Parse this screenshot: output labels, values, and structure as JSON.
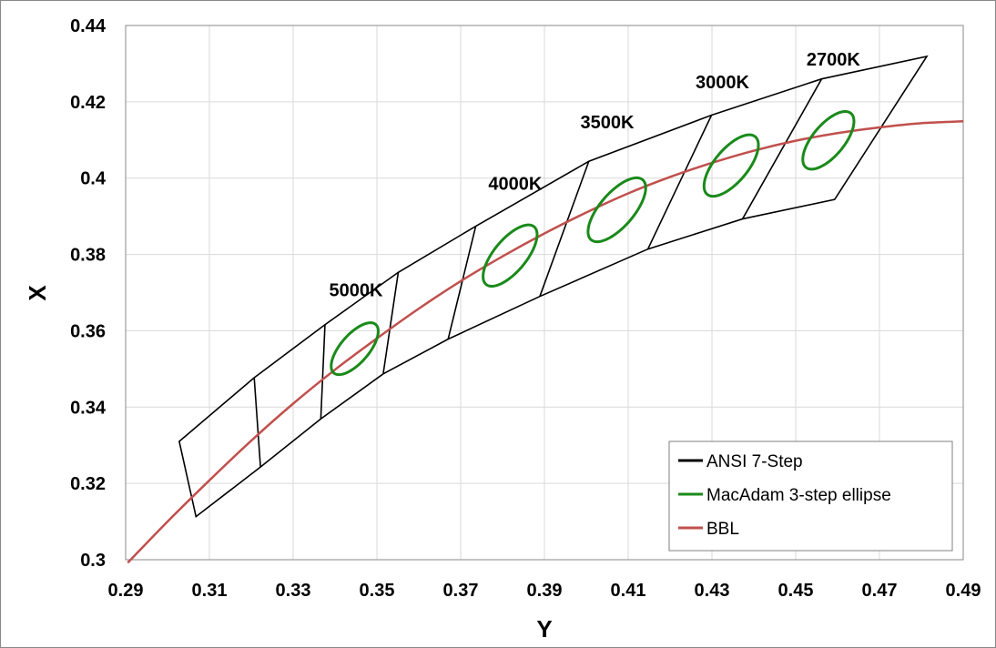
{
  "chart_data": {
    "type": "line",
    "title": "",
    "xlabel": "Y",
    "ylabel": "X",
    "xlim": [
      0.29,
      0.49
    ],
    "ylim": [
      0.3,
      0.44
    ],
    "x_ticks": [
      "0.29",
      "0.31",
      "0.33",
      "0.35",
      "0.37",
      "0.39",
      "0.41",
      "0.43",
      "0.45",
      "0.47",
      "0.49"
    ],
    "y_ticks": [
      "0.44",
      "0.42",
      "0.4",
      "0.38",
      "0.36",
      "0.34",
      "0.32",
      "0.3"
    ],
    "grid": true,
    "legend_position": "bottom-right",
    "cct_labels": [
      {
        "text": "5000K",
        "x": 0.345,
        "y": 0.369
      },
      {
        "text": "4000K",
        "x": 0.383,
        "y": 0.397
      },
      {
        "text": "3500K",
        "x": 0.405,
        "y": 0.413
      },
      {
        "text": "3000K",
        "x": 0.4325,
        "y": 0.4235
      },
      {
        "text": "2700K",
        "x": 0.459,
        "y": 0.4295
      }
    ],
    "series": [
      {
        "name": "ANSI 7-Step",
        "color": "#000000",
        "outline_upper": [
          [
            0.3028,
            0.331
          ],
          [
            0.3207,
            0.3477
          ],
          [
            0.3376,
            0.3616
          ],
          [
            0.3551,
            0.3753
          ],
          [
            0.3736,
            0.3874
          ],
          [
            0.4006,
            0.4044
          ],
          [
            0.4299,
            0.4165
          ],
          [
            0.4562,
            0.426
          ],
          [
            0.4813,
            0.4319
          ]
        ],
        "outline_lower": [
          [
            0.3068,
            0.3113
          ],
          [
            0.3222,
            0.3243
          ],
          [
            0.3366,
            0.3369
          ],
          [
            0.3515,
            0.3487
          ],
          [
            0.367,
            0.3578
          ],
          [
            0.3889,
            0.369
          ],
          [
            0.4147,
            0.3814
          ],
          [
            0.4373,
            0.3893
          ],
          [
            0.4593,
            0.3944
          ]
        ],
        "dividers": [
          [
            [
              0.3207,
              0.3477
            ],
            [
              0.3222,
              0.3243
            ]
          ],
          [
            [
              0.3376,
              0.3616
            ],
            [
              0.3366,
              0.3369
            ]
          ],
          [
            [
              0.3551,
              0.3753
            ],
            [
              0.3515,
              0.3487
            ]
          ],
          [
            [
              0.3736,
              0.3874
            ],
            [
              0.367,
              0.3578
            ]
          ],
          [
            [
              0.4006,
              0.4044
            ],
            [
              0.3889,
              0.369
            ]
          ],
          [
            [
              0.4299,
              0.4165
            ],
            [
              0.4147,
              0.3814
            ]
          ],
          [
            [
              0.4562,
              0.426
            ],
            [
              0.4373,
              0.3893
            ]
          ]
        ]
      },
      {
        "name": "MacAdam 3-step ellipse",
        "color": "#1a8a1a",
        "ellipses": [
          {
            "cx": 0.3447,
            "cy": 0.3553,
            "a": 0.0081,
            "b": 0.0035,
            "theta_deg": 53
          },
          {
            "cx": 0.3818,
            "cy": 0.3797,
            "a": 0.0095,
            "b": 0.004,
            "theta_deg": 54
          },
          {
            "cx": 0.4073,
            "cy": 0.3917,
            "a": 0.01,
            "b": 0.0042,
            "theta_deg": 53
          },
          {
            "cx": 0.4346,
            "cy": 0.4033,
            "a": 0.0095,
            "b": 0.0041,
            "theta_deg": 54
          },
          {
            "cx": 0.4578,
            "cy": 0.4099,
            "a": 0.0089,
            "b": 0.0039,
            "theta_deg": 54
          }
        ]
      },
      {
        "name": "BBL",
        "color": "#c0504d",
        "points": [
          [
            0.2905,
            0.2992
          ],
          [
            0.3,
            0.31
          ],
          [
            0.31,
            0.3208
          ],
          [
            0.32,
            0.3312
          ],
          [
            0.33,
            0.3409
          ],
          [
            0.34,
            0.3498
          ],
          [
            0.35,
            0.358
          ],
          [
            0.36,
            0.3658
          ],
          [
            0.37,
            0.373
          ],
          [
            0.38,
            0.3795
          ],
          [
            0.39,
            0.3855
          ],
          [
            0.4,
            0.391
          ],
          [
            0.41,
            0.396
          ],
          [
            0.42,
            0.4003
          ],
          [
            0.43,
            0.404
          ],
          [
            0.44,
            0.4072
          ],
          [
            0.45,
            0.4098
          ],
          [
            0.46,
            0.4118
          ],
          [
            0.47,
            0.4133
          ],
          [
            0.48,
            0.4144
          ],
          [
            0.49,
            0.4149
          ]
        ]
      }
    ]
  }
}
